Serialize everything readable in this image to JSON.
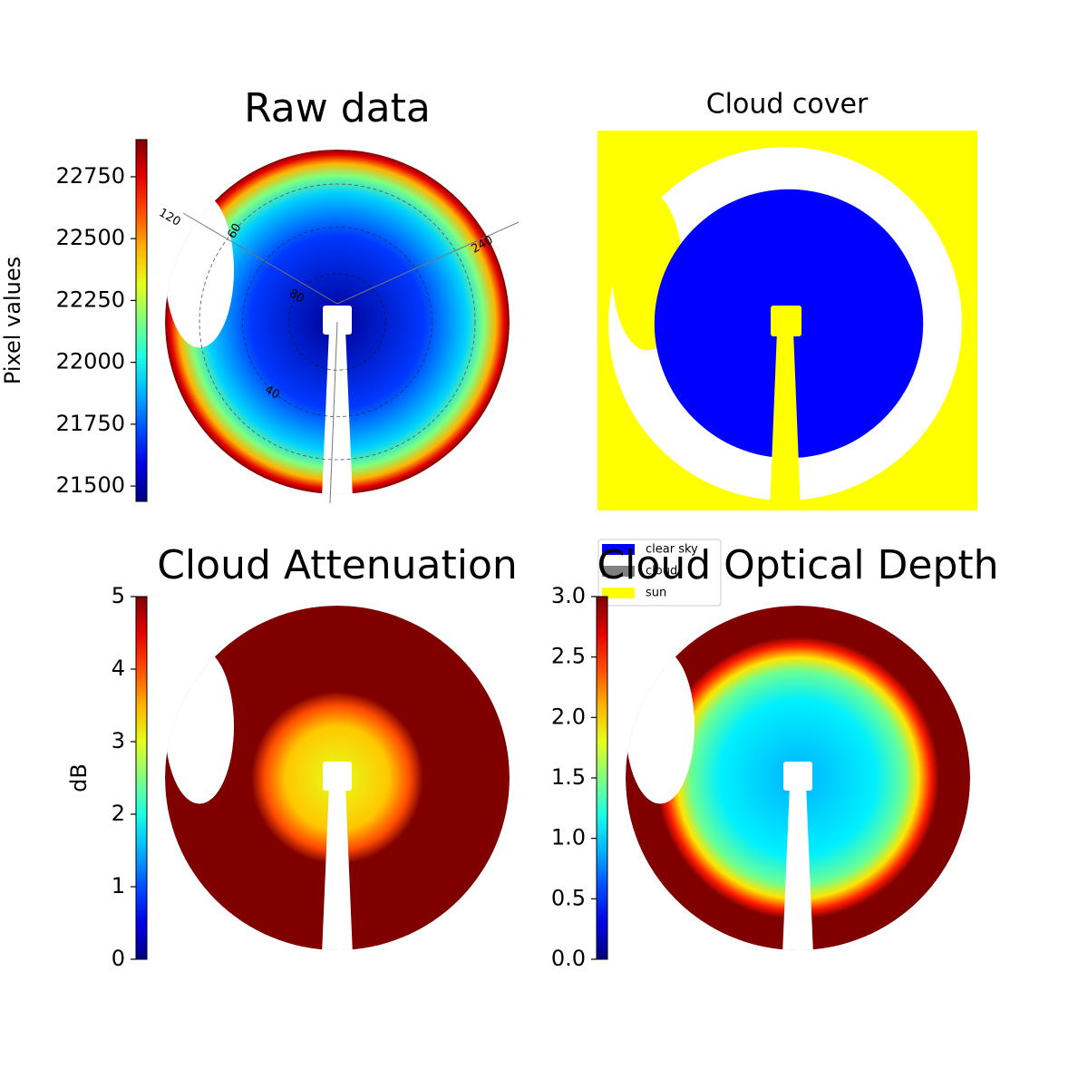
{
  "chart_data": [
    {
      "type": "image",
      "title": "Raw data",
      "colormap": "jet",
      "colorbar": {
        "label": "Pixel values",
        "lim": [
          21438,
          22900
        ],
        "ticks": [
          21500,
          21750,
          22000,
          22250,
          22500,
          22750
        ]
      },
      "annotations": [
        "120",
        "60",
        "240",
        "80",
        "40"
      ]
    },
    {
      "type": "classification",
      "title": "Cloud cover",
      "legend": [
        {
          "name": "clear sky",
          "color": "#0000ff"
        },
        {
          "name": "cloud",
          "color": "#808080"
        },
        {
          "name": "sun",
          "color": "#ffff00"
        }
      ]
    },
    {
      "type": "image",
      "title": "Cloud Attenuation",
      "colormap": "jet",
      "colorbar": {
        "label": "dB",
        "lim": [
          0,
          5
        ],
        "ticks": [
          0,
          1,
          2,
          3,
          4,
          5
        ]
      }
    },
    {
      "type": "image",
      "title": "Cloud Optical Depth",
      "colormap": "jet",
      "colorbar": {
        "lim": [
          0,
          3
        ],
        "ticks": [
          {
            "value": 0,
            "label": "0.0"
          },
          {
            "value": 0.5,
            "label": "0.5"
          },
          {
            "value": 1,
            "label": "1.0"
          },
          {
            "value": 1.5,
            "label": "1.5"
          },
          {
            "value": 2,
            "label": "2.0"
          },
          {
            "value": 2.5,
            "label": "2.5"
          },
          {
            "value": 3,
            "label": "3.0"
          }
        ]
      }
    }
  ]
}
